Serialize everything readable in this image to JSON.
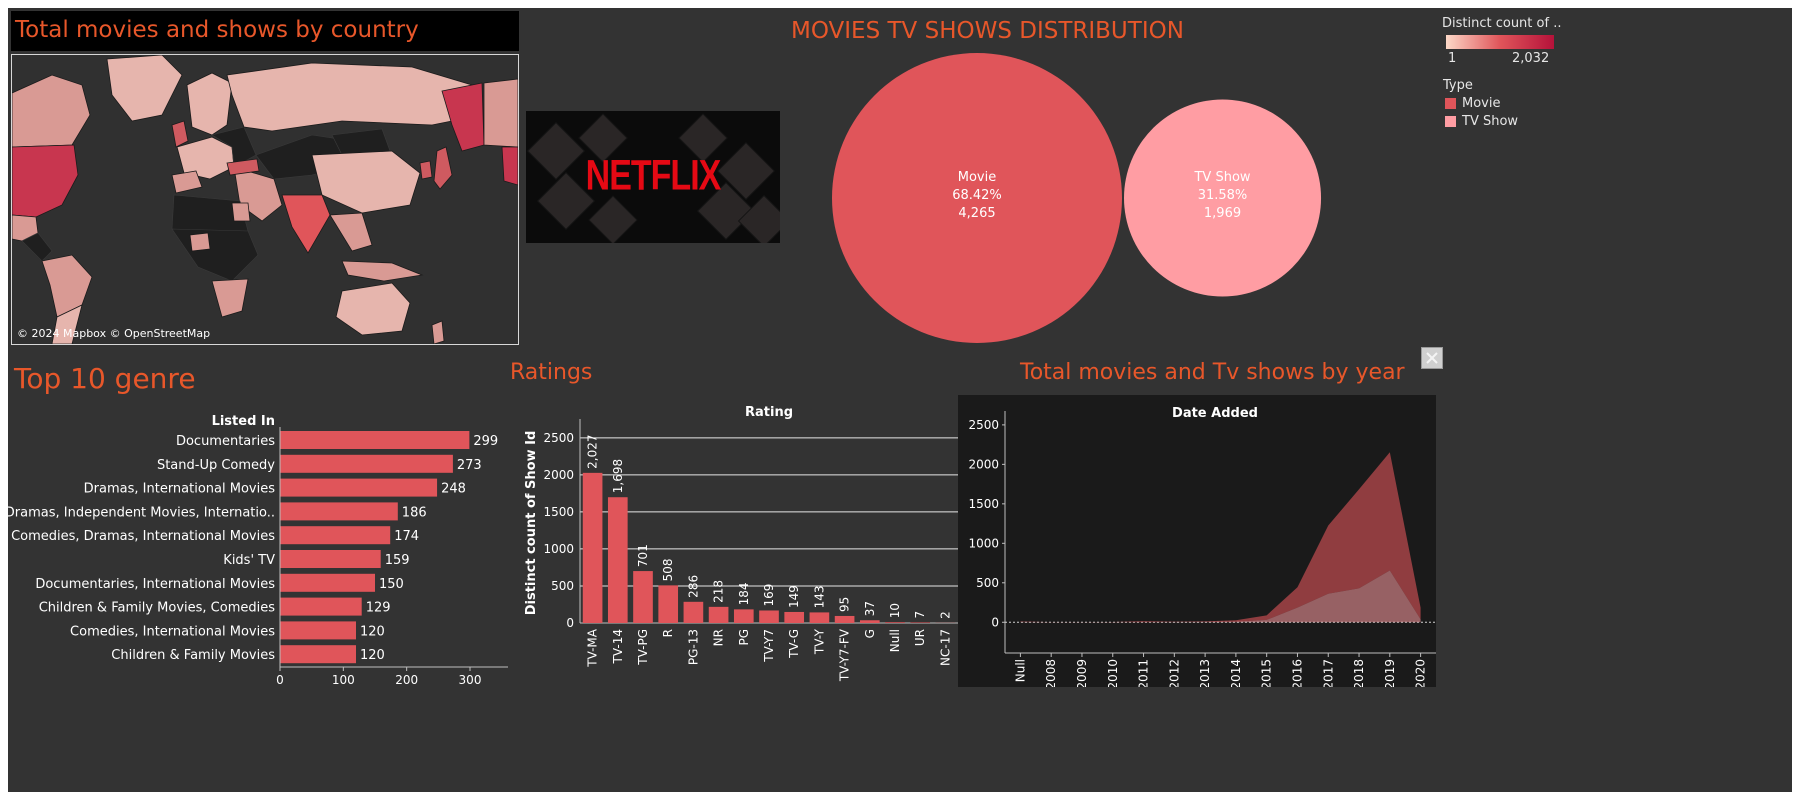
{
  "colors": {
    "accent_orange": "#e8572a",
    "movie": "#e0555a",
    "tv_show": "#ff9da3",
    "bar": "#e0555a",
    "background": "#333333",
    "map_land_none": "#1f1f1f",
    "map_sea": "#303030"
  },
  "map": {
    "title": "Total movies and shows by country",
    "attribution": "© 2024 Mapbox © OpenStreetMap"
  },
  "logo": {
    "text": "NETFLIX"
  },
  "distribution": {
    "title": "MOVIES TV SHOWS DISTRIBUTION"
  },
  "legend": {
    "gradient_title": "Distinct count of ..",
    "gradient_min": "1",
    "gradient_max": "2,032",
    "type_title": "Type",
    "items": [
      {
        "label": "Movie",
        "color": "#e0555a"
      },
      {
        "label": "TV Show",
        "color": "#ff9da3"
      }
    ]
  },
  "close_button": {
    "icon": "close-icon"
  },
  "chart_data": [
    {
      "id": "type-distribution",
      "type": "pie",
      "title": "MOVIES TV SHOWS DISTRIBUTION",
      "slices": [
        {
          "label": "Movie",
          "percent": "68.42%",
          "value": 4265,
          "value_label": "4,265",
          "color": "#e0555a"
        },
        {
          "label": "TV Show",
          "percent": "31.58%",
          "value": 1969,
          "value_label": "1,969",
          "color": "#ff9da3"
        }
      ]
    },
    {
      "id": "top-genre",
      "type": "bar",
      "orientation": "horizontal",
      "title": "Top 10 genre",
      "ylabel": "Listed In",
      "categories": [
        "Documentaries",
        "Stand-Up Comedy",
        "Dramas, International Movies",
        "Dramas, Independent Movies, Internatio..",
        "Comedies, Dramas, International Movies",
        "Kids' TV",
        "Documentaries, International Movies",
        "Children & Family Movies, Comedies",
        "Comedies, International Movies",
        "Children & Family Movies"
      ],
      "values": [
        299,
        273,
        248,
        186,
        174,
        159,
        150,
        129,
        120,
        120
      ],
      "xlim": [
        0,
        360
      ],
      "xticks": [
        0,
        100,
        200,
        300
      ]
    },
    {
      "id": "ratings",
      "type": "bar",
      "title": "Ratings",
      "xlabel": "Rating",
      "ylabel": "Distinct count of Show Id",
      "categories": [
        "TV-MA",
        "TV-14",
        "TV-PG",
        "R",
        "PG-13",
        "NR",
        "PG",
        "TV-Y7",
        "TV-G",
        "TV-Y",
        "TV-Y7-FV",
        "G",
        "Null",
        "UR",
        "NC-17"
      ],
      "values": [
        2027,
        1698,
        701,
        508,
        286,
        218,
        184,
        169,
        149,
        143,
        95,
        37,
        10,
        7,
        2
      ],
      "value_labels": [
        "2,027",
        "1,698",
        "701",
        "508",
        "286",
        "218",
        "184",
        "169",
        "149",
        "143",
        "95",
        "37",
        "10",
        "7",
        "2"
      ],
      "ylim": [
        0,
        2700
      ],
      "yticks": [
        0,
        500,
        1000,
        1500,
        2000,
        2500
      ],
      "grid": true
    },
    {
      "id": "by-year",
      "type": "area",
      "title": "Total movies and Tv shows by year",
      "xlabel": "Date Added",
      "categories": [
        "Null",
        "2008",
        "2009",
        "2010",
        "2011",
        "2012",
        "2013",
        "2014",
        "2015",
        "2016",
        "2017",
        "2018",
        "2019",
        "2020"
      ],
      "series": [
        {
          "name": "Movie",
          "values": [
            5,
            2,
            2,
            3,
            13,
            4,
            6,
            19,
            58,
            258,
            864,
            1255,
            1497,
            147
          ],
          "color": "#e0555a"
        },
        {
          "name": "TV Show",
          "values": [
            5,
            0,
            0,
            1,
            0,
            3,
            5,
            6,
            30,
            185,
            361,
            430,
            656,
            37
          ],
          "color": "#ff9da3"
        }
      ],
      "ylim": [
        -60,
        2600
      ],
      "yticks": [
        0,
        500,
        1000,
        1500,
        2000,
        2500
      ]
    }
  ]
}
